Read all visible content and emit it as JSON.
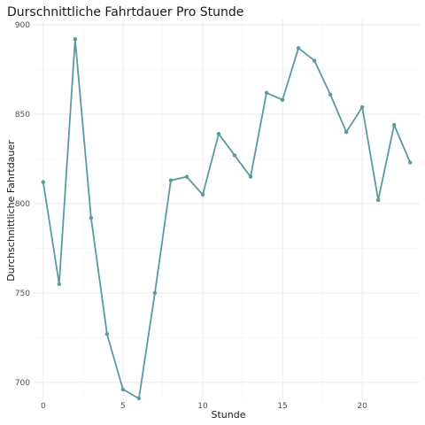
{
  "chart_data": {
    "type": "line",
    "title": "Durschnittliche Fahrtdauer Pro Stunde",
    "xlabel": "Stunde",
    "ylabel": "Durchschnittliche Fahrtdauer",
    "x": [
      0,
      1,
      2,
      3,
      4,
      5,
      6,
      7,
      8,
      9,
      10,
      11,
      12,
      13,
      14,
      15,
      16,
      17,
      18,
      19,
      20,
      21,
      22,
      23
    ],
    "values": [
      812,
      755,
      892,
      792,
      727,
      696,
      691,
      750,
      813,
      815,
      805,
      839,
      827,
      815,
      862,
      858,
      887,
      880,
      861,
      840,
      854,
      802,
      844,
      823
    ],
    "xlim": [
      -0.6,
      23.6
    ],
    "ylim": [
      690,
      903
    ],
    "x_ticks": [
      0,
      5,
      10,
      15,
      20
    ],
    "y_ticks": [
      700,
      750,
      800,
      850,
      900
    ],
    "grid": true,
    "line_color": "#5b9a9d",
    "point_color": "#5b9a9d"
  }
}
